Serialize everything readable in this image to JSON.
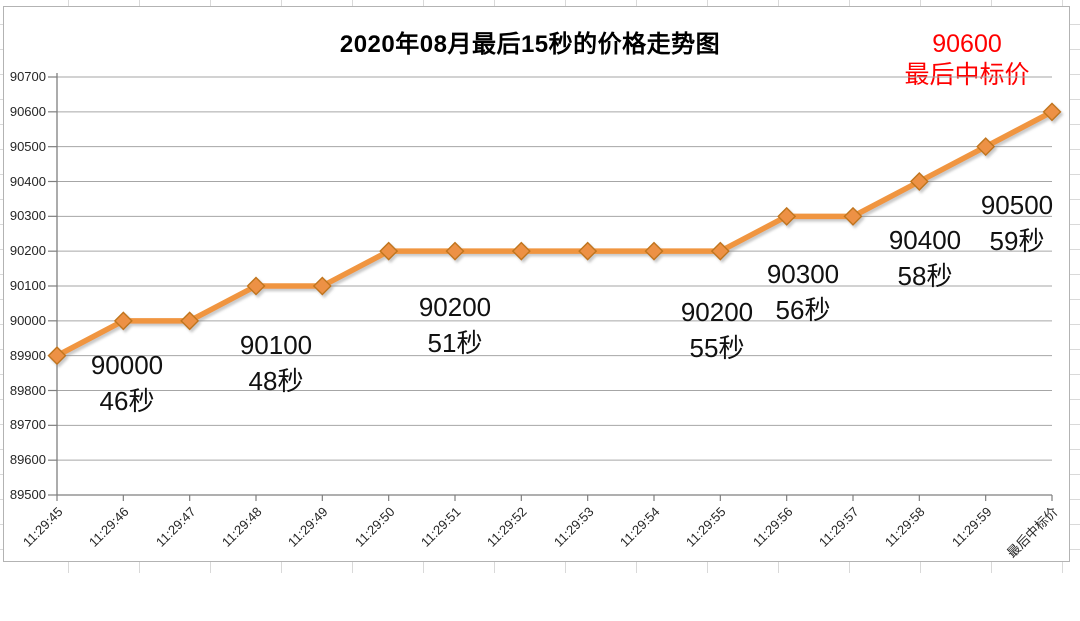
{
  "chart_data": {
    "type": "line",
    "title": "2020年08月最后15秒的价格走势图",
    "categories": [
      "11:29:45",
      "11:29:46",
      "11:29:47",
      "11:29:48",
      "11:29:49",
      "11:29:50",
      "11:29:51",
      "11:29:52",
      "11:29:53",
      "11:29:54",
      "11:29:55",
      "11:29:56",
      "11:29:57",
      "11:29:58",
      "11:29:59",
      "最后中标价"
    ],
    "values": [
      89900,
      90000,
      90000,
      90100,
      90100,
      90200,
      90200,
      90200,
      90200,
      90200,
      90200,
      90300,
      90300,
      90400,
      90500,
      90600
    ],
    "ylim": [
      89500,
      90700
    ],
    "ytick_step": 100,
    "grid": "horizontal",
    "legend": "none",
    "line_color": "#F0953F",
    "marker_shape": "diamond",
    "marker_fill": "#ED9144",
    "marker_border": "#C0751F",
    "gridline_color": "#A6A6A6",
    "axis_color": "#7F7F7F",
    "point_labels": [
      {
        "index": 1,
        "price": "90000",
        "second": "46秒"
      },
      {
        "index": 3,
        "price": "90100",
        "second": "48秒"
      },
      {
        "index": 6,
        "price": "90200",
        "second": "51秒"
      },
      {
        "index": 10,
        "price": "90200",
        "second": "55秒"
      },
      {
        "index": 11,
        "price": "90300",
        "second": "56秒"
      },
      {
        "index": 13,
        "price": "90400",
        "second": "58秒"
      },
      {
        "index": 14,
        "price": "90500",
        "second": "59秒"
      }
    ],
    "final_annotation": {
      "price": "90600",
      "label": "最后中标价",
      "color": "#FF0000"
    }
  }
}
